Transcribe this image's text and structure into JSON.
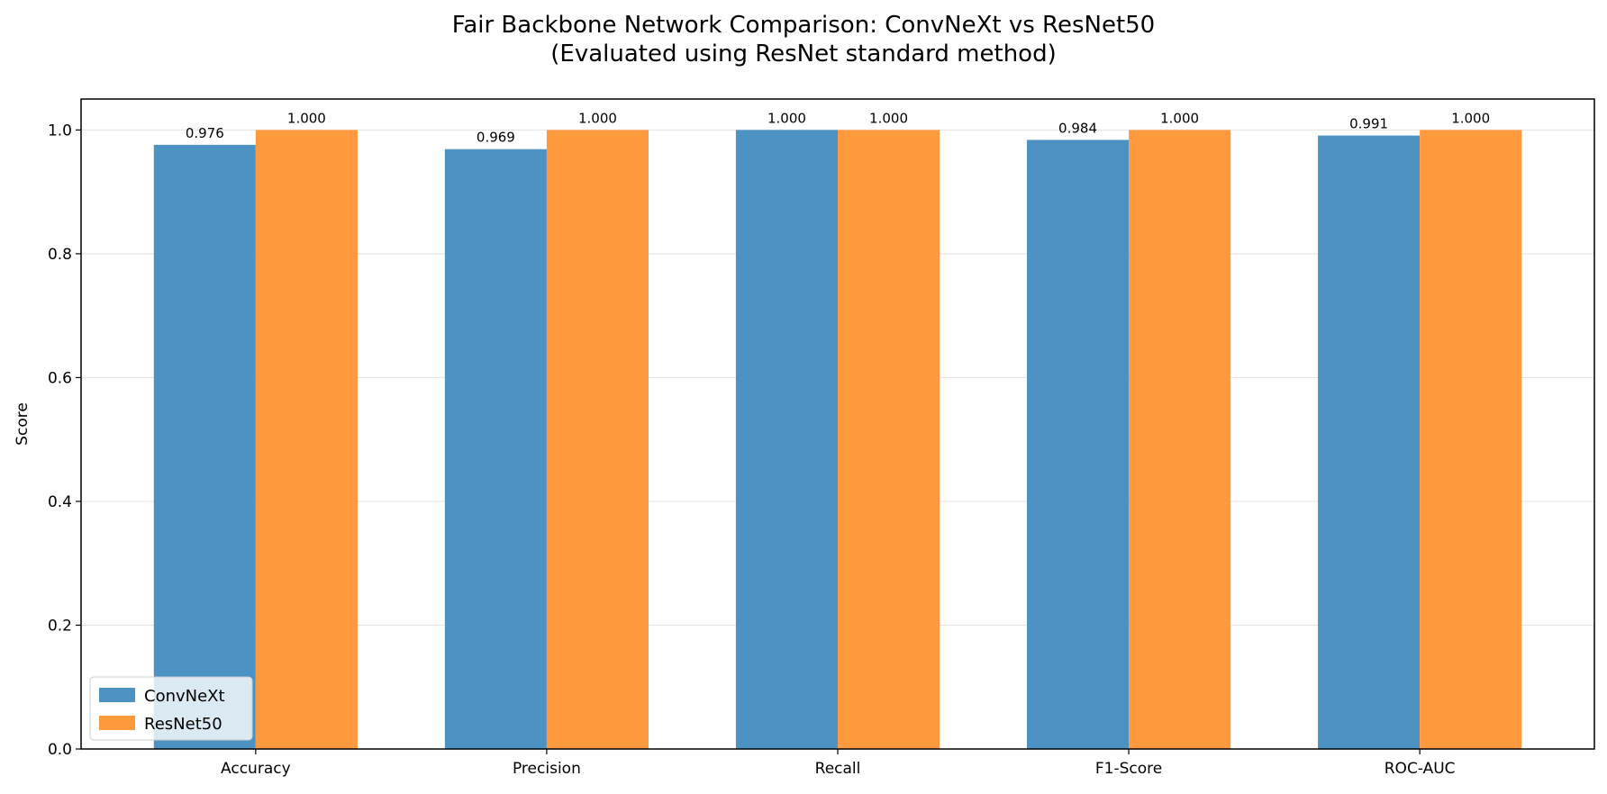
{
  "chart_data": {
    "type": "bar",
    "title": "Fair Backbone Network Comparison: ConvNeXt vs ResNet50",
    "subtitle": "(Evaluated using ResNet standard method)",
    "xlabel": "",
    "ylabel": "Score",
    "categories": [
      "Accuracy",
      "Precision",
      "Recall",
      "F1-Score",
      "ROC-AUC"
    ],
    "series": [
      {
        "name": "ConvNeXt",
        "color": "#4c92c3",
        "values": [
          0.976,
          0.969,
          1.0,
          0.984,
          0.991
        ],
        "labels": [
          "0.976",
          "0.969",
          "1.000",
          "0.984",
          "0.991"
        ]
      },
      {
        "name": "ResNet50",
        "color": "#ff993e",
        "values": [
          1.0,
          1.0,
          1.0,
          1.0,
          1.0
        ],
        "labels": [
          "1.000",
          "1.000",
          "1.000",
          "1.000",
          "1.000"
        ]
      }
    ],
    "ylim": [
      0,
      1.05
    ],
    "yticks": [
      0.0,
      0.2,
      0.4,
      0.6,
      0.8,
      1.0
    ],
    "ytick_labels": [
      "0.0",
      "0.2",
      "0.4",
      "0.6",
      "0.8",
      "1.0"
    ],
    "grid": "y",
    "legend_position": "lower-left"
  }
}
